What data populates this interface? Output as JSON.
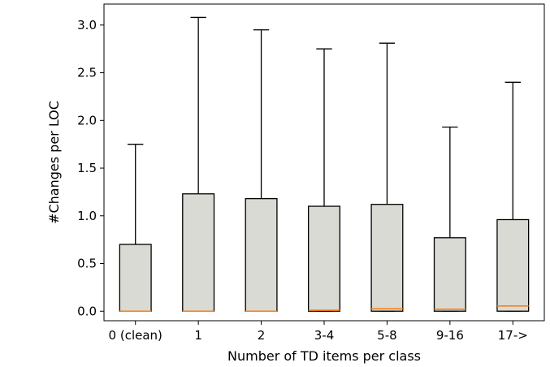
{
  "chart_data": {
    "type": "box",
    "title": "",
    "xlabel": "Number of TD items per class",
    "ylabel": "#Changes per LOC",
    "categories": [
      "0 (clean)",
      "1",
      "2",
      "3-4",
      "5-8",
      "9-16",
      "17->"
    ],
    "ylim": [
      -0.1,
      3.22
    ],
    "yticks": [
      0.0,
      0.5,
      1.0,
      1.5,
      2.0,
      2.5,
      3.0
    ],
    "ytick_labels": [
      "0.0",
      "0.5",
      "1.0",
      "1.5",
      "2.0",
      "2.5",
      "3.0"
    ],
    "grid": false,
    "boxes": [
      {
        "category": "0 (clean)",
        "q1": 0.0,
        "median": 0.0,
        "q3": 0.7,
        "whisker_low": 0.0,
        "whisker_high": 1.75
      },
      {
        "category": "1",
        "q1": 0.0,
        "median": 0.0,
        "q3": 1.23,
        "whisker_low": 0.0,
        "whisker_high": 3.08
      },
      {
        "category": "2",
        "q1": 0.0,
        "median": 0.0,
        "q3": 1.18,
        "whisker_low": 0.0,
        "whisker_high": 2.95
      },
      {
        "category": "3-4",
        "q1": 0.0,
        "median": 0.01,
        "q3": 1.1,
        "whisker_low": 0.0,
        "whisker_high": 2.75
      },
      {
        "category": "5-8",
        "q1": 0.0,
        "median": 0.025,
        "q3": 1.12,
        "whisker_low": 0.0,
        "whisker_high": 2.81
      },
      {
        "category": "9-16",
        "q1": 0.0,
        "median": 0.02,
        "q3": 0.77,
        "whisker_low": 0.0,
        "whisker_high": 1.93
      },
      {
        "category": "17->",
        "q1": 0.0,
        "median": 0.055,
        "q3": 0.96,
        "whisker_low": 0.0,
        "whisker_high": 2.4
      }
    ],
    "colors": {
      "box_fill": "#d9dad4",
      "box_edge": "#000000",
      "median": "#ff7f0e",
      "axes": "#000000",
      "background": "#ffffff"
    }
  }
}
